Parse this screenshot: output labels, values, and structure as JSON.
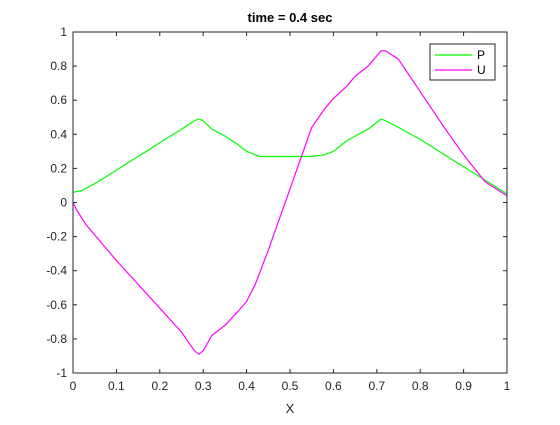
{
  "chart_data": {
    "type": "line",
    "title": "time = 0.4 sec",
    "xlabel": "X",
    "ylabel": "",
    "xlim": [
      0,
      1
    ],
    "ylim": [
      -1,
      1
    ],
    "xticks": [
      "0",
      "0.1",
      "0.2",
      "0.3",
      "0.4",
      "0.5",
      "0.6",
      "0.7",
      "0.8",
      "0.9",
      "1"
    ],
    "yticks": [
      "-1",
      "-0.8",
      "-0.6",
      "-0.4",
      "-0.2",
      "0",
      "0.2",
      "0.4",
      "0.6",
      "0.8",
      "1"
    ],
    "grid": false,
    "legend": "top-right",
    "series": [
      {
        "name": "P",
        "color": "#00ff00",
        "x": [
          0,
          0.02,
          0.05,
          0.1,
          0.15,
          0.2,
          0.25,
          0.28,
          0.29,
          0.3,
          0.32,
          0.35,
          0.38,
          0.4,
          0.43,
          0.45,
          0.5,
          0.55,
          0.58,
          0.6,
          0.63,
          0.65,
          0.68,
          0.7,
          0.71,
          0.72,
          0.75,
          0.8,
          0.85,
          0.9,
          0.95,
          1.0
        ],
        "y": [
          0.06,
          0.07,
          0.11,
          0.19,
          0.27,
          0.35,
          0.43,
          0.48,
          0.49,
          0.48,
          0.43,
          0.39,
          0.34,
          0.3,
          0.27,
          0.27,
          0.27,
          0.27,
          0.28,
          0.3,
          0.36,
          0.39,
          0.43,
          0.47,
          0.49,
          0.48,
          0.44,
          0.37,
          0.29,
          0.21,
          0.13,
          0.05
        ]
      },
      {
        "name": "U",
        "color": "#ff00ff",
        "x": [
          0,
          0.01,
          0.03,
          0.05,
          0.1,
          0.15,
          0.2,
          0.25,
          0.28,
          0.29,
          0.3,
          0.32,
          0.35,
          0.38,
          0.4,
          0.42,
          0.45,
          0.5,
          0.55,
          0.58,
          0.6,
          0.63,
          0.65,
          0.68,
          0.7,
          0.71,
          0.72,
          0.75,
          0.8,
          0.85,
          0.9,
          0.95,
          1.0
        ],
        "y": [
          0.0,
          -0.05,
          -0.13,
          -0.19,
          -0.34,
          -0.48,
          -0.62,
          -0.76,
          -0.87,
          -0.89,
          -0.87,
          -0.78,
          -0.72,
          -0.64,
          -0.58,
          -0.48,
          -0.28,
          0.08,
          0.44,
          0.55,
          0.61,
          0.68,
          0.74,
          0.8,
          0.86,
          0.89,
          0.89,
          0.84,
          0.65,
          0.46,
          0.28,
          0.12,
          0.04
        ]
      }
    ]
  }
}
